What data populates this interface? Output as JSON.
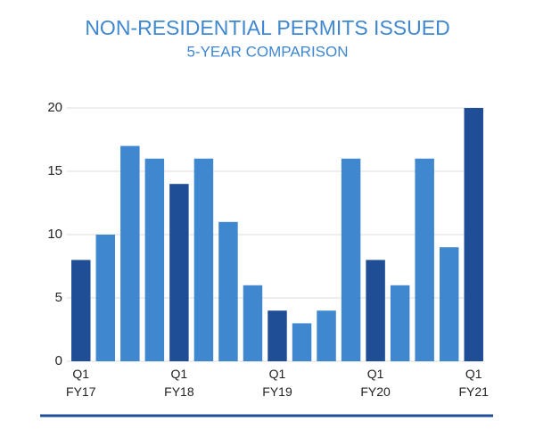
{
  "chart_data": {
    "type": "bar",
    "title": "NON-RESIDENTIAL PERMITS ISSUED",
    "subtitle": "5-YEAR COMPARISON",
    "categories": [
      "Q1 FY17",
      null,
      null,
      null,
      "Q1 FY18",
      null,
      null,
      null,
      "Q1 FY19",
      null,
      null,
      null,
      "Q1 FY20",
      null,
      null,
      null,
      "Q1 FY21"
    ],
    "values": [
      8,
      10,
      17,
      16,
      14,
      16,
      11,
      6,
      4,
      3,
      4,
      16,
      8,
      6,
      16,
      9,
      20
    ],
    "colors": [
      "#1f4e96",
      "#3f87cf",
      "#3f87cf",
      "#3f87cf",
      "#1f4e96",
      "#3f87cf",
      "#3f87cf",
      "#3f87cf",
      "#1f4e96",
      "#3f87cf",
      "#3f87cf",
      "#3f87cf",
      "#1f4e96",
      "#3f87cf",
      "#3f87cf",
      "#3f87cf",
      "#1f4e96"
    ],
    "ylim": [
      0,
      20
    ],
    "yticks": [
      0,
      5,
      10,
      15,
      20
    ],
    "grid": true
  }
}
